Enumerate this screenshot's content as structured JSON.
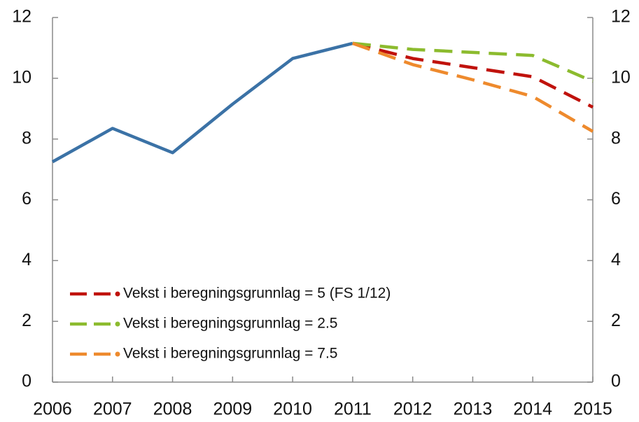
{
  "chart_data": {
    "type": "line",
    "categories": [
      "2006",
      "2007",
      "2008",
      "2009",
      "2010",
      "2011",
      "2012",
      "2013",
      "2014",
      "2015"
    ],
    "series": [
      {
        "color": "#3b72a6",
        "dashed": false,
        "values": [
          7.25,
          8.35,
          7.55,
          9.15,
          10.65,
          11.15,
          null,
          null,
          null,
          null
        ]
      },
      {
        "name": "Vekst i beregningsgrunnlag = 5 (FS 1/12)",
        "color": "#c0120c",
        "dashed": true,
        "values": [
          null,
          null,
          null,
          null,
          null,
          11.15,
          10.65,
          10.35,
          10.05,
          9.05
        ]
      },
      {
        "name": "Vekst i beregningsgrunnlag = 2.5",
        "color": "#8cbb2e",
        "dashed": true,
        "values": [
          null,
          null,
          null,
          null,
          null,
          11.15,
          10.95,
          10.85,
          10.75,
          9.9
        ]
      },
      {
        "name": "Vekst i beregningsgrunnlag = 7.5",
        "color": "#ee8a2d",
        "dashed": true,
        "values": [
          null,
          null,
          null,
          null,
          null,
          11.15,
          10.45,
          9.95,
          9.4,
          8.25
        ]
      }
    ],
    "ylim": [
      0,
      12
    ],
    "yticks": [
      0,
      2,
      4,
      6,
      8,
      10,
      12
    ],
    "y2lim": [
      0,
      12
    ],
    "y2ticks": [
      0,
      2,
      4,
      6,
      8,
      10,
      12
    ],
    "grid": false,
    "legend": "lower left"
  }
}
